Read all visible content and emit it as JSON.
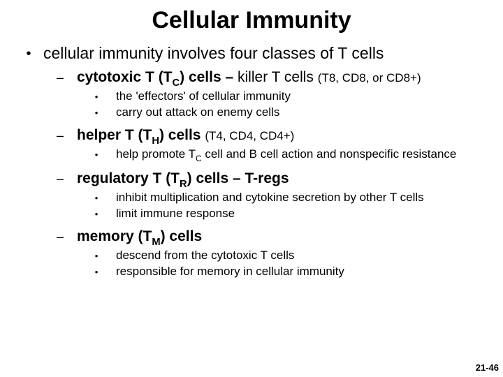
{
  "title": "Cellular Immunity",
  "l1_text": "cellular immunity involves four classes of T cells",
  "c1": {
    "head_pre": "cytotoxic T (T",
    "head_sub": "C",
    "head_post": ") cells – ",
    "head_tail": "killer T cells ",
    "head_small": "(T8, CD8, or CD8+)",
    "b1": "the  'effectors' of cellular immunity",
    "b2": "carry out attack on enemy cells"
  },
  "c2": {
    "head_pre": "helper T (T",
    "head_sub": "H",
    "head_post": ") cells ",
    "head_small": "(T4, CD4, CD4+)",
    "b1a": "help promote T",
    "b1sub": "C",
    "b1b": " cell and B cell action and nonspecific resistance"
  },
  "c3": {
    "head_pre": "regulatory T (T",
    "head_sub": "R",
    "head_post": ") cells – T-regs",
    "b1": "inhibit multiplication and cytokine secretion by other T cells",
    "b2": "limit immune response"
  },
  "c4": {
    "head_pre": "memory (T",
    "head_sub": "M",
    "head_post": ") cells",
    "b1": "descend from the cytotoxic T cells",
    "b2": "responsible for memory in cellular immunity"
  },
  "page_number": "21-46",
  "bullets": {
    "l1": "•",
    "l2": "–",
    "l3": "•"
  }
}
